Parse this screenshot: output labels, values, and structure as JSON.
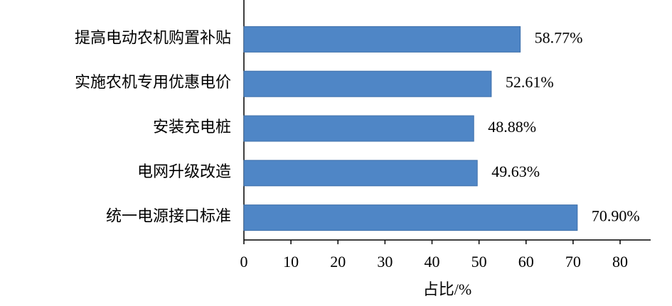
{
  "chart_data": {
    "type": "bar",
    "orientation": "horizontal",
    "categories": [
      "提高电动农机购置补贴",
      "实施农机专用优惠电价",
      "安装充电桩",
      "电网升级改造",
      "统一电源接口标准"
    ],
    "values": [
      58.77,
      52.61,
      48.88,
      49.63,
      70.9
    ],
    "value_labels": [
      "58.77%",
      "52.61%",
      "48.88%",
      "49.63%",
      "70.90%"
    ],
    "color": "#4f86c6",
    "xlabel": "占比/%",
    "xlim": [
      0,
      86.5
    ],
    "xticks": [
      0,
      10,
      20,
      30,
      40,
      50,
      60,
      70,
      80
    ],
    "grid": false
  }
}
